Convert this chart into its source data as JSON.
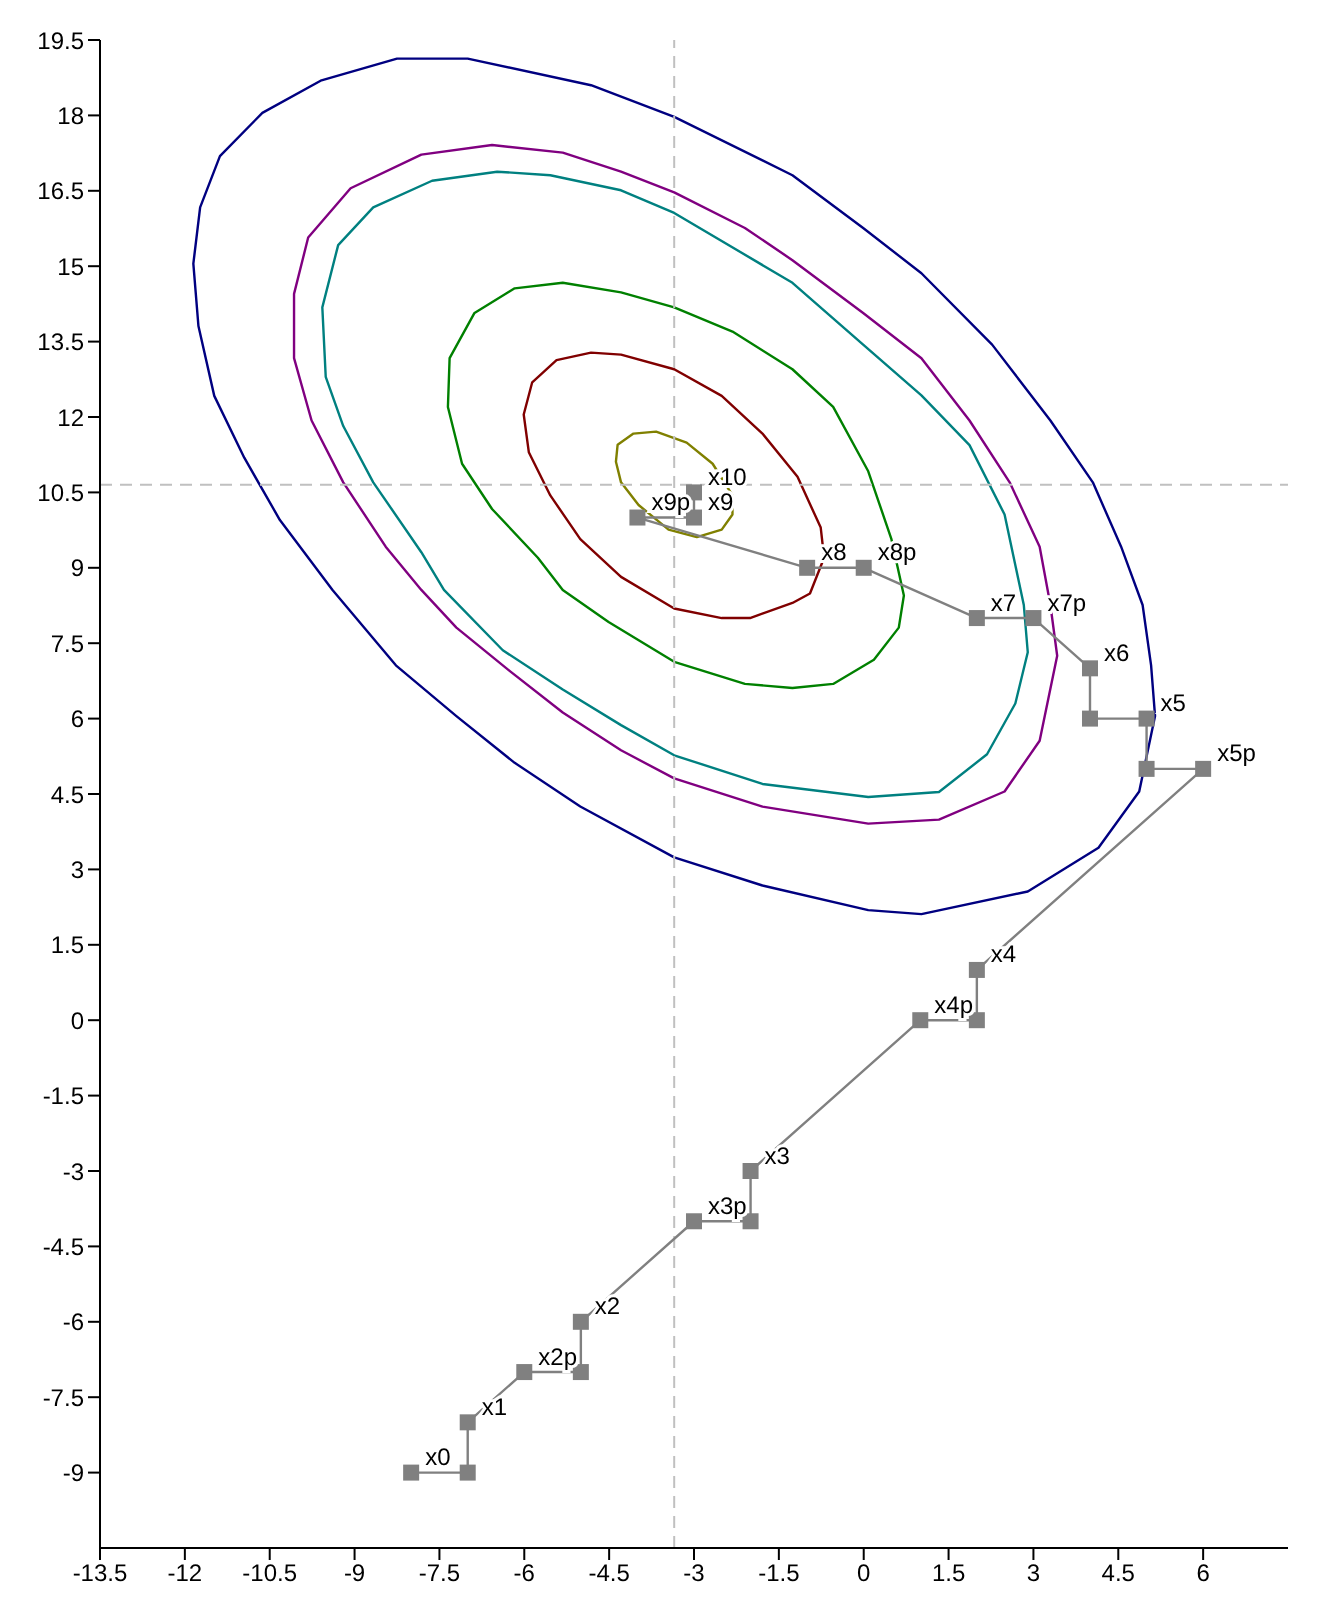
{
  "chart_data": {
    "type": "line",
    "xlim": [
      -13.5,
      7.5
    ],
    "ylim": [
      -10.5,
      19.5
    ],
    "xticks": [
      -13.5,
      -12,
      -10.5,
      -9,
      -7.5,
      -6,
      -4.5,
      -3,
      -1.5,
      0,
      1.5,
      3,
      4.5,
      6
    ],
    "yticks": [
      -9,
      -7.5,
      -6,
      -4.5,
      -3,
      -1.5,
      0,
      1.5,
      3,
      4.5,
      6,
      7.5,
      9,
      10.5,
      12,
      13.5,
      15,
      16.5,
      18,
      19.5
    ],
    "line_style": "solid",
    "series": [
      {
        "color": "#808080",
        "marker": "square",
        "x": [
          -8,
          -7,
          -7,
          -6,
          -5,
          -5,
          -3,
          -2,
          -2,
          1,
          2,
          2,
          6,
          5,
          5,
          4,
          4,
          3,
          2,
          0,
          -1,
          -4,
          -3,
          -3
        ],
        "values": [
          -9,
          -9,
          -8,
          -7,
          -7,
          -6,
          -4,
          -4,
          -3,
          0,
          0,
          1,
          5,
          5,
          6,
          6,
          7,
          8,
          8,
          9,
          9,
          10,
          10,
          10.5
        ]
      }
    ],
    "ref_lines": [
      {
        "axis": "x",
        "value": -3.35,
        "color": "#c0c0c0",
        "line_style": "dashed"
      },
      {
        "axis": "y",
        "value": 10.65,
        "color": "#c0c0c0",
        "line_style": "dashed"
      }
    ],
    "annotations": [
      {
        "text": "x0",
        "x": -8,
        "y": -9
      },
      {
        "text": "x1",
        "x": -7,
        "y": -8
      },
      {
        "text": "x2p",
        "x": -6,
        "y": -7
      },
      {
        "text": "x2",
        "x": -5,
        "y": -6
      },
      {
        "text": "x3p",
        "x": -3,
        "y": -4
      },
      {
        "text": "x3",
        "x": -2,
        "y": -3
      },
      {
        "text": "x4p",
        "x": 1,
        "y": 0
      },
      {
        "text": "x4",
        "x": 2,
        "y": 1
      },
      {
        "text": "x5p",
        "x": 6,
        "y": 5
      },
      {
        "text": "x5",
        "x": 5,
        "y": 6
      },
      {
        "text": "x6",
        "x": 4,
        "y": 7
      },
      {
        "text": "x7p",
        "x": 3,
        "y": 8
      },
      {
        "text": "x7",
        "x": 2,
        "y": 8
      },
      {
        "text": "x8p",
        "x": 0,
        "y": 9
      },
      {
        "text": "x8",
        "x": -1,
        "y": 9
      },
      {
        "text": "x9p",
        "x": -4,
        "y": 10
      },
      {
        "text": "x9",
        "x": -3,
        "y": 10
      },
      {
        "text": "x10",
        "x": -3,
        "y": 10.5
      }
    ]
  }
}
